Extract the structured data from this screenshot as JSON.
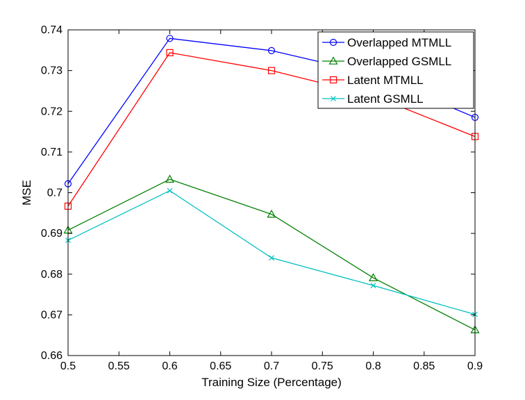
{
  "chart_data": {
    "type": "line",
    "title": "",
    "xlabel": "Training Size (Percentage)",
    "ylabel": "MSE",
    "xlim": [
      0.5,
      0.9
    ],
    "ylim": [
      0.66,
      0.74
    ],
    "xticks": [
      0.5,
      0.55,
      0.6,
      0.65,
      0.7,
      0.75,
      0.8,
      0.85,
      0.9
    ],
    "xtick_labels": [
      "0.5",
      "0.55",
      "0.6",
      "0.65",
      "0.7",
      "0.75",
      "0.8",
      "0.85",
      "0.9"
    ],
    "yticks": [
      0.66,
      0.67,
      0.68,
      0.69,
      0.7,
      0.71,
      0.72,
      0.73,
      0.74
    ],
    "ytick_labels": [
      "0.66",
      "0.67",
      "0.68",
      "0.69",
      "0.7",
      "0.71",
      "0.72",
      "0.73",
      "0.74"
    ],
    "grid": false,
    "legend_position": "top-right",
    "x": [
      0.5,
      0.6,
      0.7,
      0.8,
      0.9
    ],
    "series": [
      {
        "name": "Overlapped MTMLL",
        "values": [
          0.7022,
          0.7379,
          0.7349,
          0.7291,
          0.7185
        ],
        "color": "#0000ff",
        "marker": "circle"
      },
      {
        "name": "Overlapped GSMLL",
        "values": [
          0.6908,
          0.7033,
          0.6947,
          0.6791,
          0.6663
        ],
        "color": "#007f00",
        "marker": "triangle"
      },
      {
        "name": "Latent MTMLL",
        "values": [
          0.6967,
          0.7344,
          0.73,
          0.7238,
          0.7138
        ],
        "color": "#ff0000",
        "marker": "square"
      },
      {
        "name": "Latent GSMLL",
        "values": [
          0.6883,
          0.7005,
          0.684,
          0.6772,
          0.6701
        ],
        "color": "#00bfbf",
        "marker": "x"
      }
    ]
  }
}
